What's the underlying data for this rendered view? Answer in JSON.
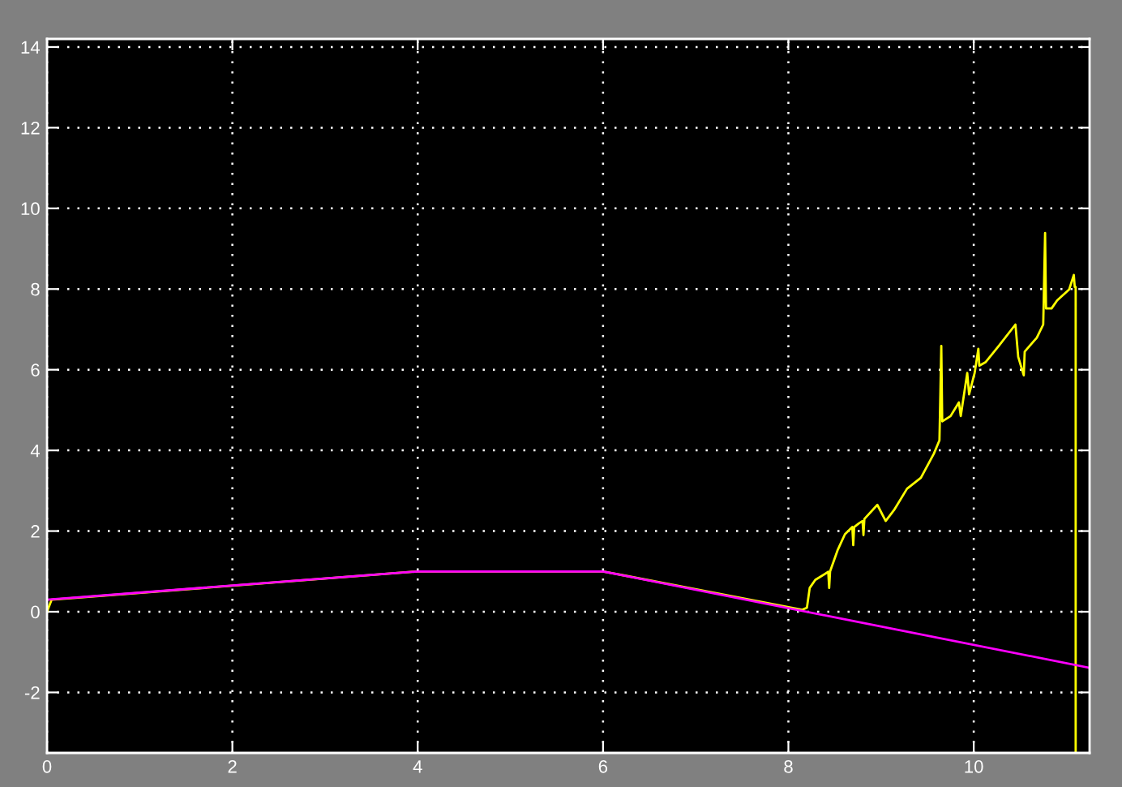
{
  "chart_data": {
    "type": "line",
    "series": [
      {
        "color": "#ffff00",
        "x": [
          0,
          0.05,
          4.0,
          6.0,
          8.15,
          8.2,
          8.23,
          8.29,
          8.43,
          8.44,
          8.45,
          8.53,
          8.61,
          8.69,
          8.7,
          8.71,
          8.76,
          8.8,
          8.81,
          8.82,
          8.96,
          9.05,
          9.14,
          9.28,
          9.43,
          9.57,
          9.63,
          9.65,
          9.66,
          9.75,
          9.84,
          9.86,
          9.93,
          9.95,
          10.01,
          10.05,
          10.06,
          10.13,
          10.27,
          10.45,
          10.48,
          10.54,
          10.55,
          10.68,
          10.75,
          10.77,
          10.78,
          10.84,
          10.9,
          11.03,
          11.08,
          11.09,
          11.1,
          11.1
        ],
        "values": [
          0,
          0.3,
          1.0,
          1.0,
          0.05,
          0.1,
          0.59,
          0.79,
          0.99,
          0.59,
          1.0,
          1.52,
          1.92,
          2.1,
          1.65,
          2.1,
          2.19,
          2.25,
          1.9,
          2.3,
          2.65,
          2.25,
          2.52,
          3.05,
          3.32,
          3.92,
          4.25,
          6.59,
          4.72,
          4.85,
          5.19,
          4.85,
          5.92,
          5.39,
          5.92,
          6.52,
          6.1,
          6.19,
          6.59,
          7.12,
          6.32,
          5.86,
          6.45,
          6.79,
          7.12,
          9.39,
          7.52,
          7.52,
          7.72,
          7.99,
          8.35,
          8.05,
          8.05,
          -3.5
        ]
      },
      {
        "color": "#ff00ff",
        "x": [
          0,
          4.0,
          6.0,
          11.25
        ],
        "values": [
          0.3,
          1.0,
          1.0,
          -1.39
        ]
      }
    ],
    "xlim": [
      0,
      11.25
    ],
    "ylim": [
      -3.5,
      14.2
    ],
    "xticks": [
      0,
      2,
      4,
      6,
      8,
      10
    ],
    "yticks": [
      -2,
      0,
      2,
      4,
      6,
      8,
      10,
      12,
      14
    ],
    "grid": true
  }
}
